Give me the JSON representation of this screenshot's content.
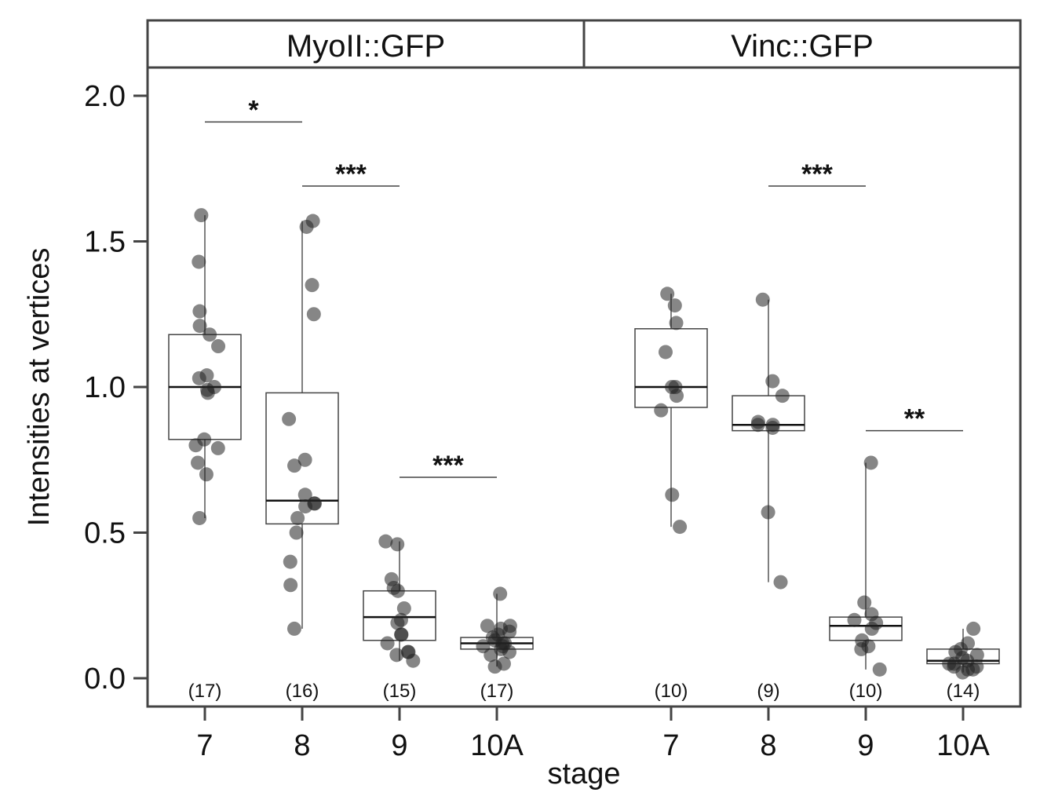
{
  "chart_data": {
    "type": "boxplot-jitter",
    "ylabel": "Intensities at vertices",
    "xlabel": "stage",
    "ylim": [
      -0.1,
      2.1
    ],
    "yticks": [
      0.0,
      0.5,
      1.0,
      1.5,
      2.0
    ],
    "ytick_labels": [
      "0.0",
      "0.5",
      "1.0",
      "1.5",
      "2.0"
    ],
    "categories": [
      "7",
      "8",
      "9",
      "10A"
    ],
    "panels": [
      {
        "title": "MyoII::GFP",
        "groups": [
          {
            "stage": "7",
            "n_label": "(17)",
            "q1": 0.82,
            "median": 1.0,
            "q3": 1.18,
            "wlow": 0.55,
            "whigh": 1.59,
            "points": [
              1.59,
              1.43,
              1.26,
              1.21,
              1.18,
              1.14,
              1.04,
              1.03,
              1.0,
              0.99,
              0.98,
              0.82,
              0.8,
              0.79,
              0.74,
              0.7,
              0.55
            ]
          },
          {
            "stage": "8",
            "n_label": "(16)",
            "q1": 0.53,
            "median": 0.61,
            "q3": 0.98,
            "wlow": 0.17,
            "whigh": 1.57,
            "points": [
              1.57,
              1.55,
              1.35,
              1.25,
              0.89,
              0.75,
              0.73,
              0.63,
              0.6,
              0.6,
              0.59,
              0.55,
              0.5,
              0.4,
              0.32,
              0.17
            ]
          },
          {
            "stage": "9",
            "n_label": "(15)",
            "q1": 0.13,
            "median": 0.21,
            "q3": 0.3,
            "wlow": 0.06,
            "whigh": 0.47,
            "points": [
              0.47,
              0.46,
              0.34,
              0.31,
              0.3,
              0.24,
              0.2,
              0.19,
              0.15,
              0.15,
              0.12,
              0.09,
              0.09,
              0.08,
              0.06
            ]
          },
          {
            "stage": "10A",
            "n_label": "(17)",
            "q1": 0.1,
            "median": 0.12,
            "q3": 0.14,
            "wlow": 0.04,
            "whigh": 0.29,
            "points": [
              0.29,
              0.18,
              0.18,
              0.17,
              0.16,
              0.15,
              0.14,
              0.13,
              0.12,
              0.12,
              0.11,
              0.11,
              0.1,
              0.09,
              0.08,
              0.05,
              0.04
            ]
          }
        ],
        "comparisons": [
          {
            "from": 0,
            "to": 1,
            "y": 1.91,
            "label": "*"
          },
          {
            "from": 1,
            "to": 2,
            "y": 1.69,
            "label": "***"
          },
          {
            "from": 2,
            "to": 3,
            "y": 0.69,
            "label": "***"
          }
        ]
      },
      {
        "title": "Vinc::GFP",
        "groups": [
          {
            "stage": "7",
            "n_label": "(10)",
            "q1": 0.93,
            "median": 1.0,
            "q3": 1.2,
            "wlow": 0.52,
            "whigh": 1.32,
            "points": [
              1.32,
              1.28,
              1.22,
              1.12,
              1.0,
              1.0,
              0.97,
              0.92,
              0.63,
              0.52
            ]
          },
          {
            "stage": "8",
            "n_label": "(9)",
            "q1": 0.85,
            "median": 0.87,
            "q3": 0.97,
            "wlow": 0.33,
            "whigh": 1.3,
            "points": [
              1.3,
              1.02,
              0.97,
              0.88,
              0.87,
              0.86,
              0.57,
              0.33,
              0.87
            ]
          },
          {
            "stage": "9",
            "n_label": "(10)",
            "q1": 0.13,
            "median": 0.18,
            "q3": 0.21,
            "wlow": 0.03,
            "whigh": 0.74,
            "points": [
              0.74,
              0.26,
              0.22,
              0.2,
              0.19,
              0.17,
              0.13,
              0.11,
              0.1,
              0.03
            ]
          },
          {
            "stage": "10A",
            "n_label": "(14)",
            "q1": 0.05,
            "median": 0.06,
            "q3": 0.1,
            "wlow": 0.02,
            "whigh": 0.17,
            "points": [
              0.17,
              0.12,
              0.1,
              0.09,
              0.08,
              0.07,
              0.06,
              0.05,
              0.05,
              0.04,
              0.04,
              0.03,
              0.03,
              0.02
            ]
          }
        ],
        "comparisons": [
          {
            "from": 1,
            "to": 2,
            "y": 1.69,
            "label": "***"
          },
          {
            "from": 2,
            "to": 3,
            "y": 0.85,
            "label": "**"
          }
        ]
      }
    ]
  }
}
